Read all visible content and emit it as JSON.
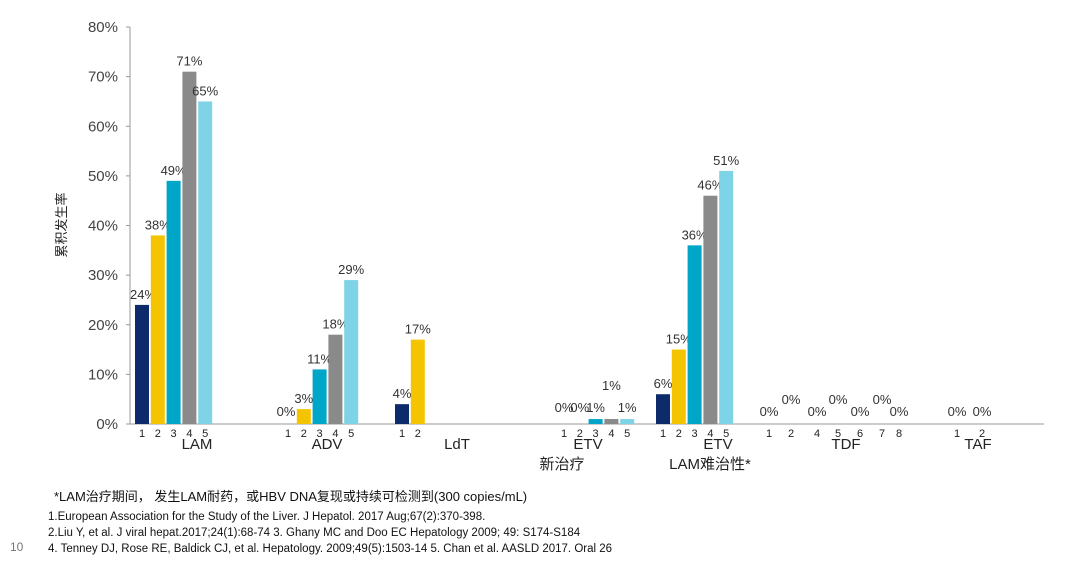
{
  "chart_data": {
    "type": "bar",
    "title": "",
    "ylabel": "累积发生率",
    "ylim": [
      0,
      80
    ],
    "yticks": [
      "0%",
      "10%",
      "20%",
      "30%",
      "40%",
      "50%",
      "60%",
      "70%",
      "80%"
    ],
    "colors": {
      "1": "#0d2b6b",
      "2": "#f5c400",
      "3": "#00a6c8",
      "4": "#8a8a8a",
      "5": "#7fd3e6"
    },
    "groups": [
      {
        "name": "LAM",
        "years": [
          "1",
          "2",
          "3",
          "4",
          "5"
        ],
        "values": [
          24,
          38,
          49,
          71,
          65
        ],
        "labels": [
          "24%",
          "38%",
          "49%",
          "71%",
          "65%"
        ]
      },
      {
        "name": "ADV",
        "years": [
          "1",
          "2",
          "3",
          "4",
          "5"
        ],
        "values": [
          0,
          3,
          11,
          18,
          29
        ],
        "labels": [
          "0%",
          "3%",
          "11%",
          "18%",
          "29%"
        ]
      },
      {
        "name": "LdT",
        "years": [
          "1",
          "2"
        ],
        "values": [
          4,
          17
        ],
        "labels": [
          "4%",
          "17%"
        ]
      },
      {
        "name": "ETV",
        "years": [
          "1",
          "2",
          "3",
          "4",
          "5"
        ],
        "values": [
          0,
          0,
          1,
          1,
          1
        ],
        "labels": [
          "0%",
          "0%",
          "1%",
          "1%",
          "1%"
        ]
      },
      {
        "name": "ETV",
        "years": [
          "1",
          "2",
          "3",
          "4",
          "5"
        ],
        "values": [
          6,
          15,
          36,
          46,
          51
        ],
        "labels": [
          "6%",
          "15%",
          "36%",
          "46%",
          "51%"
        ]
      },
      {
        "name": "TDF",
        "years": [
          "1",
          "2",
          "4",
          "5",
          "6",
          "7",
          "8"
        ],
        "values": [
          0,
          0,
          0,
          0,
          0,
          0,
          0
        ],
        "labels": [
          "0%",
          "0%",
          "0%",
          "0%",
          "0%",
          "0%",
          "0%"
        ]
      },
      {
        "name": "TAF",
        "years": [
          "1",
          "2"
        ],
        "values": [
          0,
          0
        ],
        "labels": [
          "0%",
          "0%"
        ]
      }
    ],
    "group_subtitles": [
      {
        "group": 3,
        "text": "新治疗"
      },
      {
        "group": 4,
        "text": "LAM难治性*"
      }
    ]
  },
  "footnote": "*LAM治疗期间， 发生LAM耐药，或HBV DNA复现或持续可检测到(300 copies/mL)",
  "references": [
    "1.European Association for the Study of the Liver. J Hepatol. 2017 Aug;67(2):370-398.",
    "2.Liu Y, et al. J viral hepat.2017;24(1):68-74 3. Ghany MC and Doo EC Hepatology 2009; 49: S174-S184",
    "4. Tenney DJ, Rose RE, Baldick CJ, et al. Hepatology. 2009;49(5):1503-14 5. Chan et al. AASLD 2017. Oral 26"
  ],
  "page_number": "10"
}
